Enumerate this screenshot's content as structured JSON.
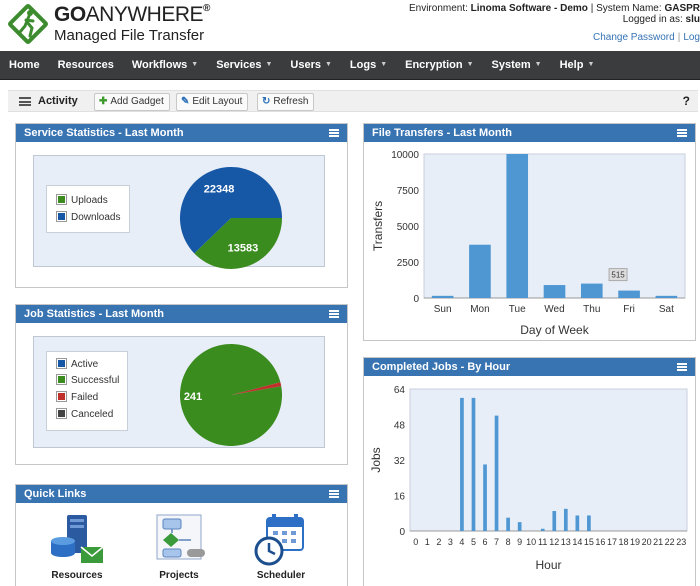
{
  "header": {
    "brand_go": "GO",
    "brand_anywhere": "ANYWHERE",
    "brand_reg": "®",
    "brand_sub": "Managed File Transfer",
    "env_label": "Environment:",
    "env_value": "Linoma Software - Demo",
    "sys_label": "| System Name:",
    "sys_value": "GASPR",
    "logged_label": "Logged in as:",
    "logged_value": "slu",
    "change_password": "Change Password",
    "separator": "|",
    "logout": "Log"
  },
  "nav": {
    "items": [
      {
        "label": "Home",
        "dropdown": false
      },
      {
        "label": "Resources",
        "dropdown": false
      },
      {
        "label": "Workflows",
        "dropdown": true
      },
      {
        "label": "Services",
        "dropdown": true
      },
      {
        "label": "Users",
        "dropdown": true
      },
      {
        "label": "Logs",
        "dropdown": true
      },
      {
        "label": "Encryption",
        "dropdown": true
      },
      {
        "label": "System",
        "dropdown": true
      },
      {
        "label": "Help",
        "dropdown": true
      }
    ]
  },
  "toolbar": {
    "title": "Activity",
    "add_gadget": "Add Gadget",
    "edit_layout": "Edit Layout",
    "refresh": "Refresh",
    "help": "?"
  },
  "service_stats": {
    "title": "Service Statistics - Last Month",
    "legend": [
      "Uploads",
      "Downloads"
    ]
  },
  "job_stats": {
    "title": "Job Statistics - Last Month",
    "legend": [
      "Active",
      "Successful",
      "Failed",
      "Canceled"
    ]
  },
  "file_transfers": {
    "title": "File Transfers - Last Month"
  },
  "completed_jobs": {
    "title": "Completed Jobs - By Hour"
  },
  "quick_links": {
    "title": "Quick Links",
    "items": [
      "Resources",
      "Projects",
      "Scheduler"
    ]
  },
  "colors": {
    "brand_green": "#3d8b2f",
    "nav_bg": "#3a3c3e",
    "gadget_header": "#3873b2",
    "pie_blue": "#1657a6",
    "pie_green": "#3b8c1f",
    "pie_red": "#c0302a",
    "bar_blue": "#4f97d3"
  },
  "chart_data": [
    {
      "type": "pie",
      "labels": [
        "Uploads",
        "Downloads"
      ],
      "values": [
        13583,
        22348
      ],
      "colors": [
        "#3b8c1f",
        "#1657a6"
      ]
    },
    {
      "type": "pie",
      "labels": [
        "Active",
        "Successful",
        "Failed",
        "Canceled"
      ],
      "values": [
        0,
        241,
        3,
        0
      ],
      "data_labels": [
        "",
        "241",
        "",
        ""
      ],
      "colors": [
        "#1657a6",
        "#3b8c1f",
        "#c0302a",
        "#444"
      ]
    },
    {
      "type": "bar",
      "categories": [
        "Sun",
        "Mon",
        "Tue",
        "Wed",
        "Thu",
        "Fri",
        "Sat"
      ],
      "values": [
        150,
        3700,
        10000,
        900,
        1000,
        515,
        150
      ],
      "tooltip": "515",
      "xlabel": "Day of Week",
      "ylabel": "Transfers",
      "yticks": [
        0,
        2500,
        5000,
        7500,
        10000
      ],
      "ylim": [
        0,
        10000
      ]
    },
    {
      "type": "bar",
      "categories": [
        "0",
        "1",
        "2",
        "3",
        "4",
        "5",
        "6",
        "7",
        "8",
        "9",
        "10",
        "11",
        "12",
        "13",
        "14",
        "15",
        "16",
        "17",
        "18",
        "19",
        "20",
        "21",
        "22",
        "23"
      ],
      "values": [
        0,
        0,
        0,
        0,
        60,
        60,
        30,
        52,
        6,
        4,
        0,
        1,
        9,
        10,
        7,
        7,
        0,
        0,
        0,
        0,
        0,
        0,
        0,
        0
      ],
      "xlabel": "Hour",
      "ylabel": "Jobs",
      "yticks": [
        0,
        16,
        32,
        48,
        64
      ],
      "ylim": [
        0,
        64
      ]
    }
  ]
}
